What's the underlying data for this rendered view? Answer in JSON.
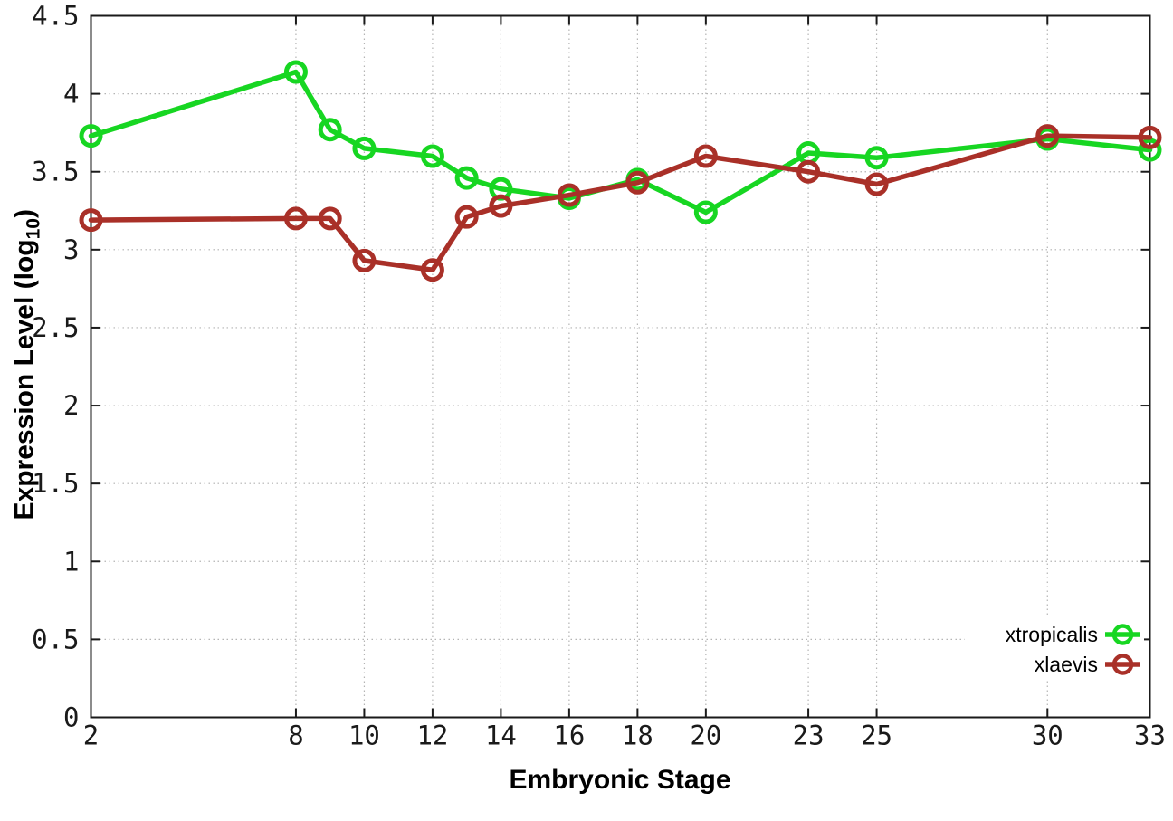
{
  "figure": {
    "background": "#ffffff",
    "frame_color": "#1a1a1a",
    "grid_color": "#b4b4b4",
    "tick_label_color": "#1a1a1a",
    "legend_text_color": "#000000"
  },
  "labels": {
    "xlabel": "Embryonic Stage",
    "ylabel_main": "Expression Level (log",
    "ylabel_sub": "10",
    "ylabel_end": ")"
  },
  "chart_data": {
    "type": "line",
    "title": "",
    "xlabel": "Embryonic Stage",
    "ylabel": "Expression Level (log10)",
    "x": [
      2,
      8,
      9,
      10,
      12,
      13,
      14,
      16,
      18,
      20,
      23,
      25,
      30,
      33
    ],
    "series": [
      {
        "name": "xtropicalis",
        "color": "#17d622",
        "values": [
          3.73,
          4.14,
          3.77,
          3.65,
          3.6,
          3.46,
          3.39,
          3.33,
          3.45,
          3.24,
          3.62,
          3.59,
          3.71,
          3.64
        ]
      },
      {
        "name": "xlaevis",
        "color": "#a93028",
        "values": [
          3.19,
          3.2,
          3.2,
          2.93,
          2.87,
          3.21,
          3.28,
          3.35,
          3.43,
          3.6,
          3.5,
          3.42,
          3.73,
          3.72
        ]
      }
    ],
    "xlim": [
      2,
      33
    ],
    "ylim": [
      0,
      4.5
    ],
    "xticks": [
      2,
      8,
      10,
      12,
      14,
      16,
      18,
      20,
      23,
      25,
      30,
      33
    ],
    "yticks": [
      0,
      0.5,
      1,
      1.5,
      2,
      2.5,
      3,
      3.5,
      4,
      4.5
    ],
    "grid": true,
    "legend_position": "bottom-right",
    "marker": "open-circle"
  }
}
